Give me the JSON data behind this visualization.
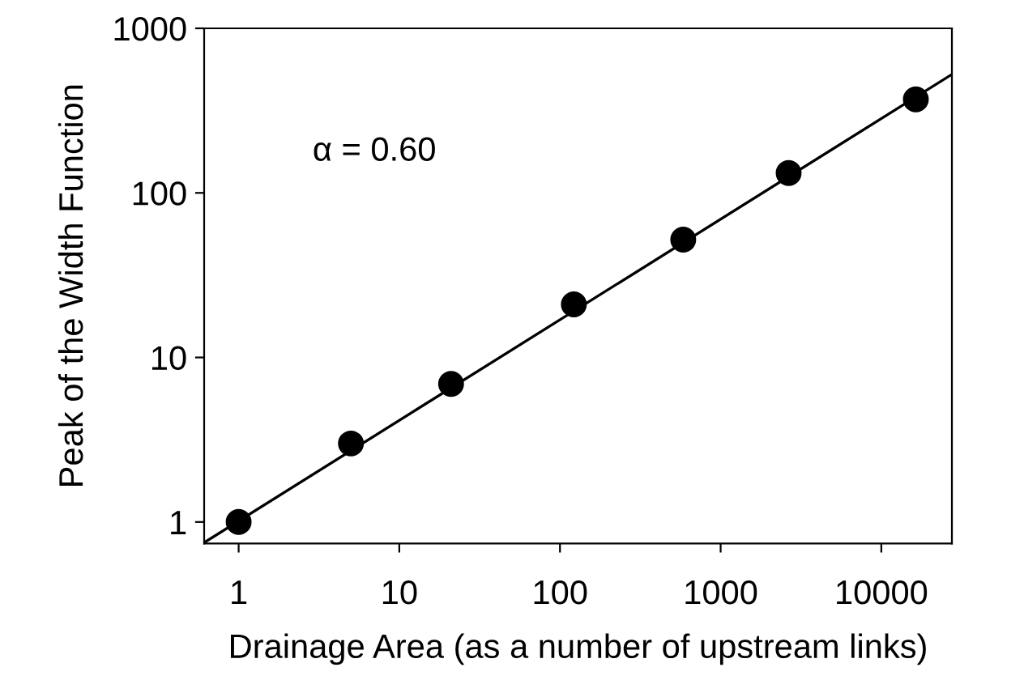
{
  "chart_data": {
    "type": "scatter",
    "xlabel": "Drainage Area (as a number of upstream links)",
    "ylabel": "Peak of the Width Function",
    "log": "xy",
    "xlim": [
      0.61,
      27500
    ],
    "ylim": [
      0.74,
      1000
    ],
    "xticks": [
      1,
      10,
      100,
      1000,
      10000
    ],
    "yticks": [
      1,
      10,
      100,
      1000
    ],
    "grid": false,
    "annotations": [
      "α = 0.60"
    ],
    "x": [
      1,
      5,
      21,
      122,
      585,
      2650,
      16400
    ],
    "series": [
      {
        "marker": "circle",
        "color": "#000000",
        "values": [
          1,
          3.0,
          6.9,
          21,
          52,
          132,
          370
        ]
      },
      {
        "type": "line",
        "marker": "none",
        "color": "#000000",
        "x": [
          0.61,
          27500
        ],
        "values": [
          0.75,
          525
        ]
      }
    ]
  }
}
